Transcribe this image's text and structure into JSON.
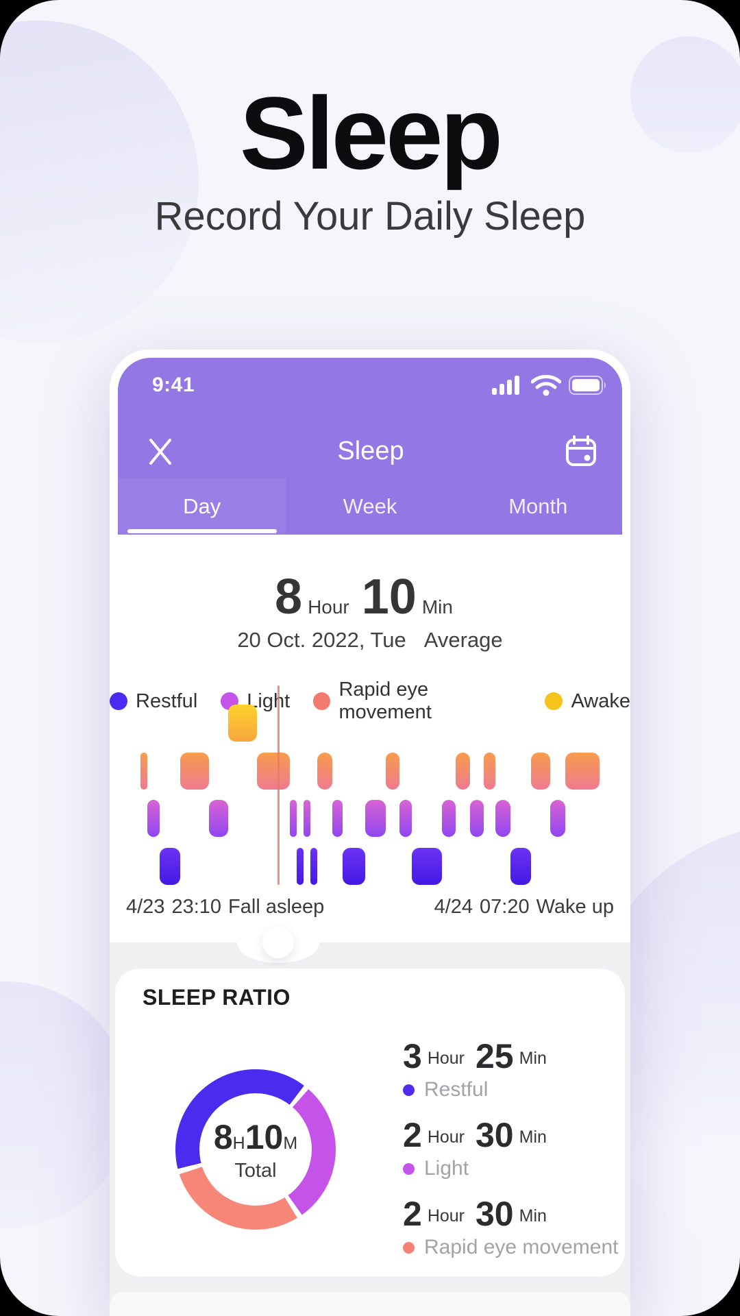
{
  "page": {
    "title": "Sleep",
    "subtitle": "Record Your Daily Sleep"
  },
  "colors": {
    "accent_purple": "#9377e4",
    "restful": "#4b2bef",
    "light": "#c553e9",
    "rem": "#f4796e",
    "awake": "#f6c31d",
    "marker_red": "#ef7366"
  },
  "phone": {
    "status_bar": {
      "time": "9:41",
      "icons": [
        "cellular-signal-icon",
        "wifi-icon",
        "battery-icon"
      ]
    },
    "nav": {
      "close_icon": "close-icon",
      "title": "Sleep",
      "calendar_icon": "calendar-icon"
    },
    "tabs": [
      {
        "label": "Day",
        "active": true
      },
      {
        "label": "Week",
        "active": false
      },
      {
        "label": "Month",
        "active": false
      }
    ]
  },
  "day_view": {
    "duration": {
      "hours": "8",
      "hours_unit": "Hour",
      "minutes": "10",
      "minutes_unit": "Min"
    },
    "date": "20 Oct. 2022, Tue",
    "average_label": "Average",
    "legend": [
      {
        "label": "Restful",
        "color": "#4b2bef"
      },
      {
        "label": "Light",
        "color": "#c553e9"
      },
      {
        "label": "Rapid eye movement",
        "color": "#f4796e"
      },
      {
        "label": "Awake",
        "color": "#f6c31d"
      }
    ],
    "fall_asleep": {
      "date": "4/23",
      "time": "23:10",
      "label": "Fall asleep"
    },
    "wake_up": {
      "date": "4/24",
      "time": "07:20",
      "label": "Wake up"
    }
  },
  "chart_data": {
    "type": "hypnogram-step",
    "x_start": "23:10",
    "x_end": "07:20",
    "total_minutes": 490,
    "stages": [
      "awake",
      "rem",
      "light",
      "deep"
    ],
    "stage_labels": {
      "awake": "Awake",
      "rem": "Rapid eye movement",
      "light": "Light",
      "deep": "Restful"
    },
    "marker_pct": 30.0,
    "segments": [
      {
        "stage": "rem",
        "from_pct": 0.0,
        "to_pct": 1.5
      },
      {
        "stage": "light",
        "from_pct": 1.5,
        "to_pct": 4.2
      },
      {
        "stage": "deep",
        "from_pct": 4.2,
        "to_pct": 8.7
      },
      {
        "stage": "rem",
        "from_pct": 8.7,
        "to_pct": 14.9
      },
      {
        "stage": "light",
        "from_pct": 14.9,
        "to_pct": 19.1
      },
      {
        "stage": "awake",
        "from_pct": 19.1,
        "to_pct": 25.4
      },
      {
        "stage": "rem",
        "from_pct": 25.4,
        "to_pct": 32.5
      },
      {
        "stage": "light",
        "from_pct": 32.5,
        "to_pct": 34.0
      },
      {
        "stage": "deep",
        "from_pct": 34.0,
        "to_pct": 35.5
      },
      {
        "stage": "light",
        "from_pct": 35.5,
        "to_pct": 37.0
      },
      {
        "stage": "deep",
        "from_pct": 37.0,
        "to_pct": 38.5
      },
      {
        "stage": "rem",
        "from_pct": 38.5,
        "to_pct": 41.8
      },
      {
        "stage": "light",
        "from_pct": 41.8,
        "to_pct": 44.0
      },
      {
        "stage": "deep",
        "from_pct": 44.0,
        "to_pct": 49.0
      },
      {
        "stage": "light",
        "from_pct": 49.0,
        "to_pct": 53.4
      },
      {
        "stage": "rem",
        "from_pct": 53.4,
        "to_pct": 56.4
      },
      {
        "stage": "light",
        "from_pct": 56.4,
        "to_pct": 59.1
      },
      {
        "stage": "deep",
        "from_pct": 59.1,
        "to_pct": 65.7
      },
      {
        "stage": "light",
        "from_pct": 65.7,
        "to_pct": 68.7
      },
      {
        "stage": "rem",
        "from_pct": 68.7,
        "to_pct": 71.8
      },
      {
        "stage": "light",
        "from_pct": 71.8,
        "to_pct": 74.8
      },
      {
        "stage": "rem",
        "from_pct": 74.8,
        "to_pct": 77.3
      },
      {
        "stage": "light",
        "from_pct": 77.3,
        "to_pct": 80.6
      },
      {
        "stage": "deep",
        "from_pct": 80.6,
        "to_pct": 85.1
      },
      {
        "stage": "rem",
        "from_pct": 85.1,
        "to_pct": 89.3
      },
      {
        "stage": "light",
        "from_pct": 89.3,
        "to_pct": 92.5
      },
      {
        "stage": "rem",
        "from_pct": 92.5,
        "to_pct": 100.0
      }
    ]
  },
  "sleep_ratio": {
    "title": "SLEEP RATIO",
    "total": {
      "hours": "8",
      "hours_unit": "H",
      "minutes": "10",
      "minutes_unit": "M",
      "caption": "Total"
    },
    "donut": {
      "start_angle_deg": -104,
      "gap_deg": 4,
      "slices": [
        {
          "label": "Restful",
          "pct": 40.6,
          "color": "#4b2bef"
        },
        {
          "label": "Light",
          "pct": 29.7,
          "color": "#c553e9"
        },
        {
          "label": "Rapid eye movement",
          "pct": 29.7,
          "color": "#f58678"
        }
      ]
    },
    "stats": [
      {
        "hours": "3",
        "hours_unit": "Hour",
        "minutes": "25",
        "minutes_unit": "Min",
        "label": "Restful",
        "color": "#4f2bf0"
      },
      {
        "hours": "2",
        "hours_unit": "Hour",
        "minutes": "30",
        "minutes_unit": "Min",
        "label": "Light",
        "color": "#c554e8"
      },
      {
        "hours": "2",
        "hours_unit": "Hour",
        "minutes": "30",
        "minutes_unit": "Min",
        "label": "Rapid eye movement",
        "color": "#f58172"
      }
    ]
  }
}
